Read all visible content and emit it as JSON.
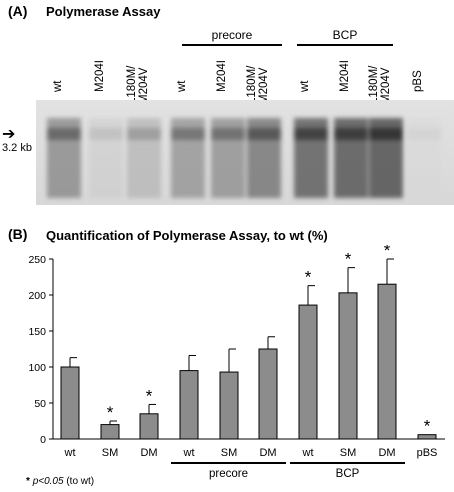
{
  "panelA": {
    "label": "(A)",
    "title": "Polymerase Assay",
    "lanes": [
      "wt",
      "M204I",
      "L180M/ M204V",
      "wt",
      "M204I",
      "L180M/ M204V",
      "wt",
      "M204I",
      "L180M/ M204V",
      "pBS"
    ],
    "lane_intensity": [
      0.62,
      0.12,
      0.32,
      0.55,
      0.58,
      0.72,
      0.85,
      0.88,
      0.92,
      0.02
    ],
    "groups": [
      "precore",
      "BCP"
    ],
    "marker": "3.2 kb"
  },
  "panelB": {
    "label": "(B)",
    "title": "Quantification of Polymerase Assay, to wt (%)",
    "footnote_star": "*",
    "footnote_p": "p<0.05",
    "footnote_tail": "(to wt)"
  },
  "chart_data": {
    "type": "bar",
    "categories": [
      "wt",
      "SM",
      "DM",
      "wt",
      "SM",
      "DM",
      "wt",
      "SM",
      "DM",
      "pBS"
    ],
    "values": [
      100,
      20,
      35,
      95,
      93,
      125,
      186,
      203,
      215,
      6
    ],
    "errors": [
      13,
      5,
      13,
      21,
      32,
      17,
      27,
      35,
      35,
      0
    ],
    "significant": [
      false,
      true,
      true,
      false,
      false,
      false,
      true,
      true,
      true,
      true
    ],
    "significance_marker": "*",
    "groups": [
      {
        "label": "precore",
        "from": 3,
        "to": 5
      },
      {
        "label": "BCP",
        "from": 6,
        "to": 8
      }
    ],
    "ylim": [
      0,
      250
    ],
    "yticks": [
      0,
      50,
      100,
      150,
      200,
      250
    ],
    "bar_color": "#8c8c8c",
    "grid": false
  }
}
